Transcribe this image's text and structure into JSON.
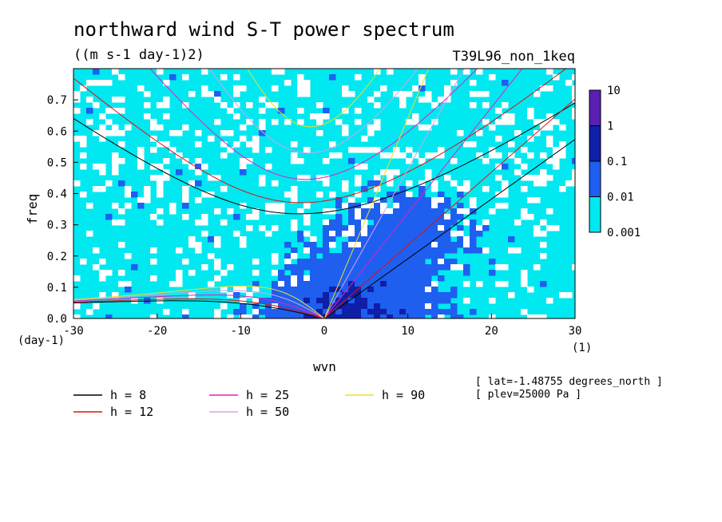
{
  "chart_data": {
    "type": "heatmap",
    "title": "northward wind S-T power spectrum",
    "subtitle": "((m s-1 day-1)2)",
    "run_label": "T39L96_non_1keq",
    "xlabel": "wvn",
    "ylabel": "freq",
    "x_unit": "(1)",
    "y_unit": "(day-1)",
    "xlim": [
      -30,
      30
    ],
    "ylim": [
      0,
      0.8
    ],
    "x_ticks": [
      "-30",
      "-20",
      "-10",
      "0",
      "10",
      "20",
      "30"
    ],
    "y_ticks": [
      "0.0",
      "0.1",
      "0.2",
      "0.3",
      "0.4",
      "0.5",
      "0.6",
      "0.7"
    ],
    "colorbar": {
      "levels": [
        "10",
        "1",
        "0.1",
        "0.01",
        "0.001"
      ],
      "colors": [
        "#5a1fb5",
        "#0f1fa8",
        "#1e5ff0",
        "#00e8f0"
      ]
    },
    "dispersion_curves": [
      {
        "label": "h =  8",
        "h": 8,
        "color": "#000000"
      },
      {
        "label": "h = 12",
        "h": 12,
        "color": "#e01010"
      },
      {
        "label": "h = 25",
        "h": 25,
        "color": "#e020c0"
      },
      {
        "label": "h = 50",
        "h": 50,
        "color": "#d8a0e8"
      },
      {
        "label": "h = 90",
        "h": 90,
        "color": "#f0e020"
      }
    ],
    "annotations": [
      "[ lat=-1.48755 degrees_north ]",
      "[ plev=25000 Pa ]"
    ]
  }
}
